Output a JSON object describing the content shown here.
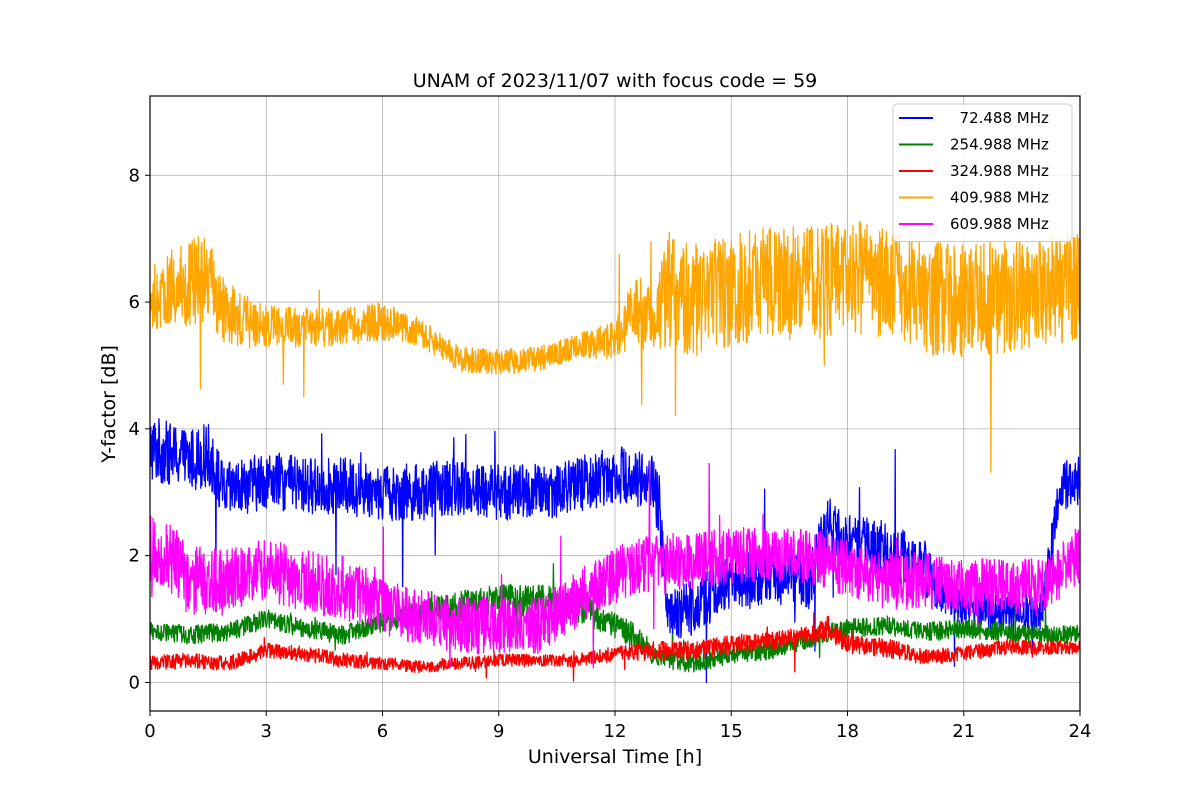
{
  "chart_data": {
    "type": "line",
    "title": "UNAM of 2023/11/07 with focus code = 59",
    "xlabel": "Universal Time [h]",
    "ylabel": "Y-factor [dB]",
    "xlim": [
      0,
      24
    ],
    "ylim": [
      -0.45,
      9.25
    ],
    "xticks": [
      0,
      3,
      6,
      9,
      12,
      15,
      18,
      21,
      24
    ],
    "yticks": [
      0,
      2,
      4,
      6,
      8
    ],
    "grid": true,
    "legend_position": "top-right",
    "series": [
      {
        "name": "  72.488 MHz",
        "color": "#0000ff",
        "x": [
          0,
          0.5,
          1,
          1.5,
          1.9,
          2.5,
          3,
          4,
          5,
          6,
          7,
          8,
          9,
          10,
          11,
          12,
          12.8,
          13.1,
          13.4,
          14,
          15,
          16,
          17,
          17.5,
          18,
          19,
          20,
          20.5,
          21,
          22,
          23,
          23.5,
          24
        ],
        "y": [
          3.7,
          3.6,
          3.5,
          3.6,
          3.0,
          3.1,
          3.2,
          3.1,
          3.1,
          3.0,
          3.0,
          3.1,
          3.0,
          3.0,
          3.1,
          3.3,
          3.2,
          3.0,
          1.0,
          1.2,
          1.6,
          1.7,
          1.6,
          2.5,
          2.2,
          2.1,
          1.8,
          1.4,
          1.2,
          1.1,
          1.1,
          3.1,
          3.2
        ],
        "spread": [
          0.55,
          0.5,
          0.5,
          0.5,
          0.45,
          0.45,
          0.45,
          0.45,
          0.45,
          0.45,
          0.45,
          0.45,
          0.45,
          0.45,
          0.45,
          0.45,
          0.45,
          0.6,
          0.4,
          0.45,
          0.45,
          0.45,
          0.45,
          0.45,
          0.45,
          0.45,
          0.45,
          0.35,
          0.3,
          0.3,
          0.3,
          0.4,
          0.4
        ]
      },
      {
        "name": "254.988 MHz",
        "color": "#008000",
        "x": [
          0,
          1,
          2,
          3,
          4,
          5,
          6,
          7,
          8,
          9,
          10,
          11,
          12,
          12.6,
          13,
          14,
          15,
          16,
          17,
          18,
          19,
          20,
          21,
          22,
          23,
          24
        ],
        "y": [
          0.8,
          0.75,
          0.8,
          1.0,
          0.85,
          0.75,
          0.95,
          1.1,
          1.2,
          1.3,
          1.3,
          1.2,
          0.9,
          0.7,
          0.4,
          0.3,
          0.45,
          0.5,
          0.7,
          0.85,
          0.9,
          0.8,
          0.85,
          0.8,
          0.75,
          0.75
        ],
        "spread": [
          0.15,
          0.15,
          0.15,
          0.15,
          0.15,
          0.15,
          0.15,
          0.2,
          0.25,
          0.25,
          0.25,
          0.25,
          0.2,
          0.2,
          0.15,
          0.15,
          0.15,
          0.15,
          0.15,
          0.15,
          0.15,
          0.15,
          0.15,
          0.15,
          0.15,
          0.15
        ]
      },
      {
        "name": "324.988 MHz",
        "color": "#ff0000",
        "x": [
          0,
          1,
          2,
          3,
          4,
          5,
          6,
          7,
          8,
          9,
          10,
          11,
          12,
          13,
          14,
          15,
          16,
          17,
          17.5,
          18,
          19,
          20,
          21,
          22,
          23,
          24
        ],
        "y": [
          0.3,
          0.35,
          0.3,
          0.5,
          0.45,
          0.35,
          0.3,
          0.25,
          0.3,
          0.35,
          0.35,
          0.35,
          0.45,
          0.5,
          0.5,
          0.6,
          0.65,
          0.75,
          0.85,
          0.6,
          0.55,
          0.4,
          0.45,
          0.55,
          0.55,
          0.55
        ],
        "spread": [
          0.12,
          0.12,
          0.12,
          0.12,
          0.12,
          0.12,
          0.1,
          0.1,
          0.1,
          0.1,
          0.1,
          0.1,
          0.12,
          0.15,
          0.15,
          0.15,
          0.15,
          0.15,
          0.2,
          0.15,
          0.15,
          0.12,
          0.12,
          0.12,
          0.12,
          0.12
        ]
      },
      {
        "name": "409.988 MHz",
        "color": "#ffa500",
        "x": [
          0,
          0.5,
          1,
          1.5,
          2,
          3,
          4,
          5,
          6,
          7,
          7.5,
          8,
          9,
          10,
          11,
          12,
          12.5,
          13,
          13.4,
          14,
          15,
          16,
          17,
          18,
          19,
          20,
          21,
          22,
          23,
          24
        ],
        "y": [
          5.9,
          6.2,
          6.3,
          6.4,
          5.8,
          5.6,
          5.6,
          5.6,
          5.7,
          5.5,
          5.3,
          5.1,
          5.05,
          5.1,
          5.3,
          5.4,
          5.9,
          5.7,
          6.2,
          6.0,
          6.2,
          6.3,
          6.3,
          6.4,
          6.3,
          6.1,
          6.0,
          6.1,
          6.2,
          6.3
        ],
        "spread": [
          0.35,
          0.6,
          0.7,
          0.7,
          0.5,
          0.35,
          0.3,
          0.3,
          0.3,
          0.25,
          0.2,
          0.2,
          0.2,
          0.2,
          0.2,
          0.3,
          0.6,
          0.5,
          0.9,
          0.9,
          0.9,
          0.9,
          0.9,
          0.9,
          0.9,
          0.9,
          0.9,
          0.9,
          0.9,
          0.9
        ]
      },
      {
        "name": "609.988 MHz",
        "color": "#ff00ff",
        "x": [
          0,
          0.5,
          1,
          2,
          3,
          4,
          5,
          6,
          7,
          8,
          9,
          10,
          11,
          12,
          13,
          14,
          15,
          16,
          17,
          18,
          19,
          20,
          21,
          22,
          23,
          24
        ],
        "y": [
          2.1,
          2.0,
          1.6,
          1.6,
          1.8,
          1.6,
          1.5,
          1.2,
          1.0,
          0.9,
          0.9,
          0.9,
          1.3,
          1.7,
          1.9,
          1.9,
          2.0,
          2.0,
          2.0,
          1.8,
          1.6,
          1.6,
          1.5,
          1.5,
          1.5,
          2.0
        ],
        "spread": [
          0.55,
          0.55,
          0.55,
          0.5,
          0.5,
          0.5,
          0.5,
          0.45,
          0.45,
          0.45,
          0.45,
          0.45,
          0.45,
          0.45,
          0.45,
          0.45,
          0.45,
          0.45,
          0.45,
          0.45,
          0.45,
          0.45,
          0.45,
          0.45,
          0.45,
          0.45
        ]
      }
    ]
  }
}
